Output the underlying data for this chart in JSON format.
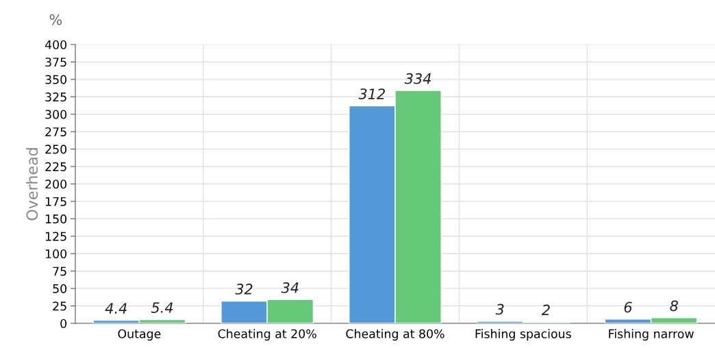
{
  "chart_data": {
    "type": "bar",
    "ylabel": "Overhead",
    "annotations": [
      "%"
    ],
    "categories": [
      "Outage",
      "Cheating at 20%",
      "Cheating at 80%",
      "Fishing spacious",
      "Fishing narrow"
    ],
    "series": [
      {
        "color": "#5499d8",
        "values": [
          4.4,
          32,
          312,
          3,
          6
        ]
      },
      {
        "color": "#66c97a",
        "values": [
          5.4,
          34,
          334,
          2,
          8
        ]
      }
    ],
    "ylim": [
      0,
      400
    ],
    "yticks": [
      0,
      25,
      50,
      75,
      100,
      125,
      150,
      175,
      200,
      225,
      250,
      275,
      300,
      325,
      350,
      375,
      400
    ],
    "grid": true,
    "data_labels": true
  }
}
